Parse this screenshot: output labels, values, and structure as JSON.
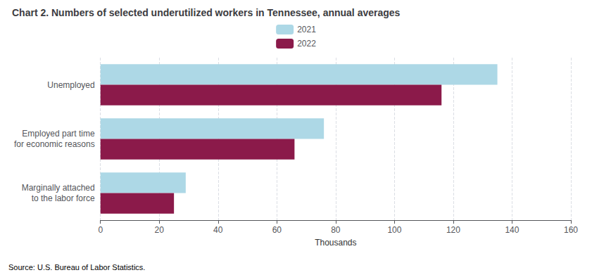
{
  "chart_data": {
    "type": "bar",
    "orientation": "horizontal",
    "title": "Chart 2. Numbers of selected underutilized workers in Tennessee, annual averages",
    "categories": [
      "Unemployed",
      "Employed part time\nfor economic reasons",
      "Marginally attached\nto the labor force"
    ],
    "series": [
      {
        "name": "2021",
        "color": "#add8e6",
        "values": [
          135,
          76,
          29
        ]
      },
      {
        "name": "2022",
        "color": "#8b1a4a",
        "values": [
          116,
          66,
          25
        ]
      }
    ],
    "xlim": [
      0,
      160
    ],
    "xticks": [
      0,
      20,
      40,
      60,
      80,
      100,
      120,
      140,
      160
    ],
    "xlabel": "Thousands",
    "grid": true,
    "legend": "top",
    "annotations": [
      "Source: U.S. Bureau of Labor Statistics."
    ]
  }
}
